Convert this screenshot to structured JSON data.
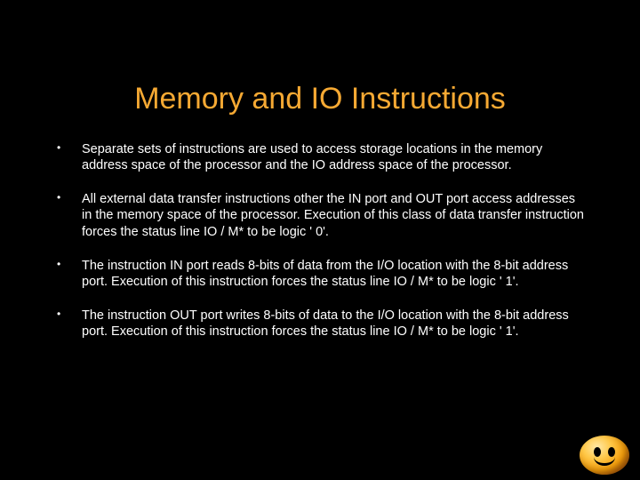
{
  "background_color": "#000000",
  "title": {
    "text": "Memory and IO Instructions",
    "color": "#f6a933",
    "fontsize": 34
  },
  "bullets": [
    "Separate sets of instructions are used to access storage locations in the memory address space of the processor and the IO address space of the processor.",
    "All external data transfer instructions other the IN port and OUT port access addresses in the memory space of the processor. Execution of this class of data transfer instruction forces the status line IO / M* to be logic ' 0'.",
    "The instruction IN port reads 8-bits of data from the I/O location with the 8-bit address port. Execution of this instruction forces the status line IO / M* to be logic ' 1'.",
    "The instruction OUT port writes 8-bits of data to the I/O location with the 8-bit address port. Execution of this instruction forces the status line IO / M* to be logic ' 1'."
  ],
  "body_color": "#ffffff",
  "body_fontsize": 14.5,
  "emoji": {
    "name": "smiley-face",
    "base_color": "#f59e0b"
  }
}
